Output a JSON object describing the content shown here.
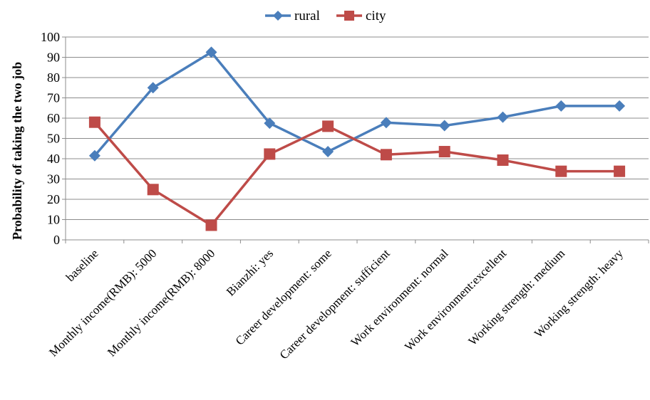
{
  "chart_data": {
    "type": "line",
    "ylabel": "Probability of taking the two job",
    "xlabel": "",
    "ylim": [
      0,
      100
    ],
    "yticks": [
      0,
      10,
      20,
      30,
      40,
      50,
      60,
      70,
      80,
      90,
      100
    ],
    "grid": true,
    "legend_position": "top-center",
    "categories": [
      "baseline",
      "Monthly income(RMB): 5000",
      "Monthly income(RMB): 8000",
      "Bianzhi: yes",
      "Career development: some",
      "Career development: sufficient",
      "Work environment: normal",
      "Work environment:excellent",
      "Working strength: medium",
      "Working strength: heavy"
    ],
    "series": [
      {
        "name": "rural",
        "color": "#4A7EBB",
        "marker": "diamond",
        "values": [
          41.5,
          75,
          92.5,
          57.5,
          43.5,
          57.8,
          56.3,
          60.5,
          66,
          66
        ]
      },
      {
        "name": "city",
        "color": "#BE4B48",
        "marker": "square",
        "values": [
          58,
          24.8,
          7.2,
          42.3,
          56,
          42,
          43.5,
          39.3,
          33.8,
          33.8
        ]
      }
    ]
  }
}
